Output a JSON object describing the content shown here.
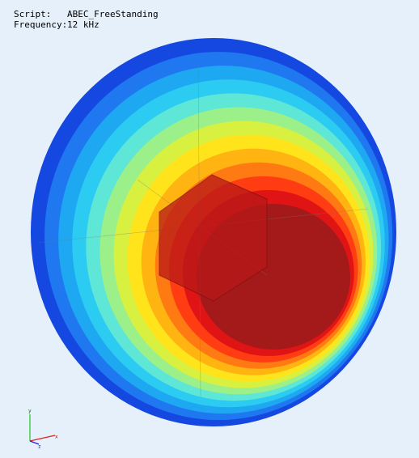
{
  "header": {
    "script_label": "Script:",
    "script": "ABEC_FreeStanding",
    "frequency_label": "Frequency:",
    "frequency": "12 kHz"
  },
  "axes": {
    "x": "x",
    "y": "y",
    "z": "z"
  }
}
